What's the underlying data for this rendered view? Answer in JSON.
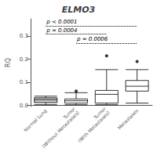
{
  "chart_data": {
    "type": "box",
    "title": "ELMO3",
    "ylabel": "RQ",
    "categories": [
      "Normal Lung",
      "Tumor\n(Without Metastases)",
      "Tumor\n(With Metastases)",
      "Metastases"
    ],
    "low": [
      0.003,
      0.003,
      0.003,
      0.01
    ],
    "q1": [
      0.012,
      0.01,
      0.01,
      0.062
    ],
    "median": [
      0.025,
      0.02,
      0.048,
      0.083
    ],
    "q3": [
      0.033,
      0.028,
      0.065,
      0.108
    ],
    "high": [
      0.04,
      0.055,
      0.155,
      0.155
    ],
    "fliers": [
      [],
      [
        0.062
      ],
      [
        0.215
      ],
      [
        0.19
      ]
    ],
    "colors": [
      "#c8c8c8",
      "#ffffff",
      "#ffffff",
      "#ffffff"
    ],
    "significance": [
      {
        "from": "Normal Lung",
        "to": "Metastases",
        "y": 0.345,
        "label": "p < 0.0001"
      },
      {
        "from": "Normal Lung",
        "to": "Tumor\n(With Metastases)",
        "y": 0.31,
        "label": "p = 0.0004"
      },
      {
        "from": "Tumor\n(Without Metastases)",
        "to": "Metastases",
        "y": 0.27,
        "label": "p = 0.0006"
      }
    ],
    "ylim": [
      -0.005,
      0.375
    ],
    "yticks": [
      {
        "value": 0.0,
        "label": "0.0"
      },
      0.1,
      0.2,
      0.3
    ],
    "grid": false
  }
}
